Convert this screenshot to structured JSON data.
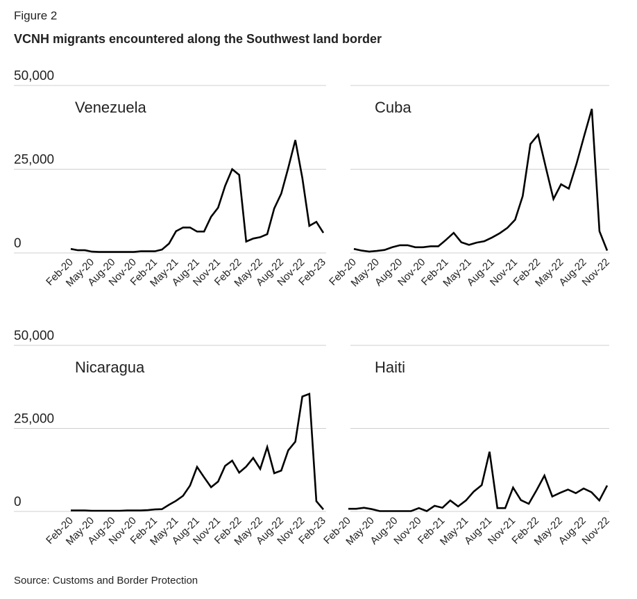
{
  "figure_label": "Figure 2",
  "title": "VCNH migrants encountered along the Southwest land border",
  "source": "Source: Customs and Border Protection",
  "chart_data": [
    {
      "type": "line",
      "title": "Venezuela",
      "color": "#000000",
      "categories": [
        "Feb-20",
        null,
        null,
        "May-20",
        null,
        null,
        "Aug-20",
        null,
        null,
        "Nov-20",
        null,
        null,
        "Feb-21",
        null,
        null,
        "May-21",
        null,
        null,
        "Aug-21",
        null,
        null,
        "Nov-21",
        null,
        null,
        "Feb-22",
        null,
        null,
        "May-22",
        null,
        null,
        "Aug-22",
        null,
        null,
        "Nov-22",
        null,
        null,
        "Feb-23"
      ],
      "values": [
        1200,
        800,
        800,
        400,
        300,
        300,
        300,
        300,
        300,
        300,
        500,
        500,
        500,
        1000,
        2800,
        6500,
        7600,
        7600,
        6400,
        6400,
        10800,
        13500,
        20000,
        25000,
        23300,
        3400,
        4300,
        4700,
        5600,
        13300,
        17700,
        25400,
        33700,
        22400,
        8100,
        9300,
        6000
      ],
      "ylim": [
        0,
        50000
      ],
      "yticks": [
        0,
        {
          "value": 25000,
          "label": "25,000"
        },
        {
          "value": 50000,
          "label": "50,000"
        }
      ],
      "ytick_labels": true
    },
    {
      "type": "line",
      "title": "Cuba",
      "color": "#000000",
      "categories": [
        "Feb-20",
        null,
        null,
        "May-20",
        null,
        null,
        "Aug-20",
        null,
        null,
        "Nov-20",
        null,
        null,
        "Feb-21",
        null,
        null,
        "May-21",
        null,
        null,
        "Aug-21",
        null,
        null,
        "Nov-21",
        null,
        null,
        "Feb-22",
        null,
        null,
        "May-22",
        null,
        null,
        "Aug-22",
        null,
        null,
        "Nov-22"
      ],
      "values": [
        1200,
        700,
        400,
        600,
        900,
        1700,
        2300,
        2300,
        1700,
        1700,
        2000,
        2000,
        3900,
        6000,
        3200,
        2400,
        3100,
        3500,
        4600,
        5900,
        7500,
        9900,
        17000,
        32500,
        35300,
        25600,
        16100,
        20500,
        19200,
        26600,
        34900,
        43000,
        6500,
        700
      ],
      "ylim": [
        0,
        50000
      ],
      "yticks": [
        0,
        {
          "value": 25000,
          "label": "25,000"
        },
        {
          "value": 50000,
          "label": "50,000"
        }
      ],
      "ytick_labels": false
    },
    {
      "type": "line",
      "title": "Nicaragua",
      "color": "#000000",
      "categories": [
        "Feb-20",
        null,
        null,
        "May-20",
        null,
        null,
        "Aug-20",
        null,
        null,
        "Nov-20",
        null,
        null,
        "Feb-21",
        null,
        null,
        "May-21",
        null,
        null,
        "Aug-21",
        null,
        null,
        "Nov-21",
        null,
        null,
        "Feb-22",
        null,
        null,
        "May-22",
        null,
        null,
        "Aug-22",
        null,
        null,
        "Nov-22",
        null,
        null,
        "Feb-23"
      ],
      "values": [
        300,
        300,
        300,
        200,
        200,
        200,
        200,
        200,
        300,
        300,
        300,
        400,
        600,
        700,
        2000,
        3200,
        4700,
        7800,
        13400,
        10300,
        7300,
        9000,
        13700,
        15300,
        11700,
        13500,
        16100,
        12800,
        19400,
        11500,
        12300,
        18400,
        21000,
        34600,
        35400,
        3100,
        600
      ],
      "ylim": [
        0,
        50000
      ],
      "yticks": [
        0,
        {
          "value": 25000,
          "label": "25,000"
        },
        {
          "value": 50000,
          "label": "50,000"
        }
      ],
      "ytick_labels": true
    },
    {
      "type": "line",
      "title": "Haiti",
      "color": "#000000",
      "categories": [
        "Feb-20",
        null,
        null,
        "May-20",
        null,
        null,
        "Aug-20",
        null,
        null,
        "Nov-20",
        null,
        null,
        "Feb-21",
        null,
        null,
        "May-21",
        null,
        null,
        "Aug-21",
        null,
        null,
        "Nov-21",
        null,
        null,
        "Feb-22",
        null,
        null,
        "May-22",
        null,
        null,
        "Aug-22",
        null,
        null,
        "Nov-22"
      ],
      "values": [
        800,
        800,
        1100,
        700,
        100,
        100,
        100,
        100,
        100,
        1000,
        100,
        1700,
        1100,
        3300,
        1500,
        3300,
        6000,
        7900,
        18000,
        1000,
        1000,
        7200,
        3400,
        2300,
        6400,
        10800,
        4500,
        5600,
        6600,
        5500,
        6900,
        5800,
        3300,
        7800
      ],
      "ylim": [
        0,
        50000
      ],
      "yticks": [
        0,
        {
          "value": 25000,
          "label": "25,000"
        },
        {
          "value": 50000,
          "label": "50,000"
        }
      ],
      "ytick_labels": false
    }
  ]
}
